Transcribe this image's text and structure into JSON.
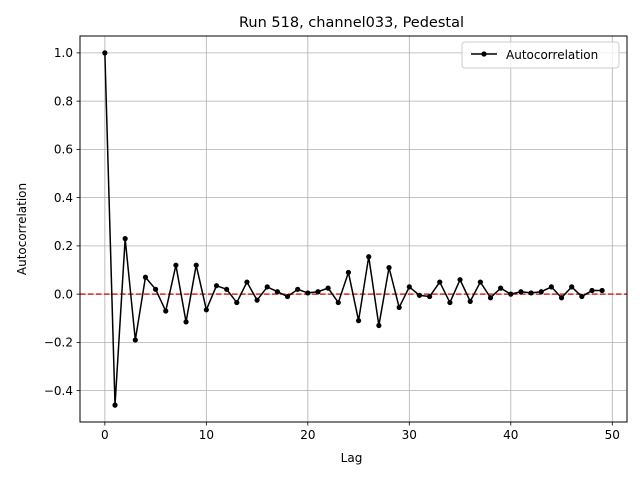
{
  "chart_data": {
    "type": "line",
    "title": "Run 518, channel033, Pedestal",
    "xlabel": "Lag",
    "ylabel": "Autocorrelation",
    "xlim": [
      -2.45,
      51.45
    ],
    "ylim": [
      -0.53,
      1.07
    ],
    "xticks": [
      0,
      10,
      20,
      30,
      40,
      50
    ],
    "xtick_labels": [
      "0",
      "10",
      "20",
      "30",
      "40",
      "50"
    ],
    "yticks": [
      -0.4,
      -0.2,
      0.0,
      0.2,
      0.4,
      0.6,
      0.8,
      1.0
    ],
    "ytick_labels": [
      "−0.4",
      "−0.2",
      "0.0",
      "0.2",
      "0.4",
      "0.6",
      "0.8",
      "1.0"
    ],
    "grid": true,
    "legend_position": "top-right",
    "reference_line": {
      "y": 0.0,
      "color": "#d62728",
      "style": "dashed"
    },
    "series": [
      {
        "name": "Autocorrelation",
        "color": "#000000",
        "marker": "circle",
        "x": [
          0,
          1,
          2,
          3,
          4,
          5,
          6,
          7,
          8,
          9,
          10,
          11,
          12,
          13,
          14,
          15,
          16,
          17,
          18,
          19,
          20,
          21,
          22,
          23,
          24,
          25,
          26,
          27,
          28,
          29,
          30,
          31,
          32,
          33,
          34,
          35,
          36,
          37,
          38,
          39,
          40,
          41,
          42,
          43,
          44,
          45,
          46,
          47,
          48,
          49
        ],
        "values": [
          1.0,
          -0.46,
          0.23,
          -0.19,
          0.07,
          0.02,
          -0.07,
          0.12,
          -0.115,
          0.12,
          -0.065,
          0.035,
          0.02,
          -0.035,
          0.05,
          -0.025,
          0.03,
          0.01,
          -0.01,
          0.02,
          0.005,
          0.01,
          0.025,
          -0.035,
          0.09,
          -0.11,
          0.155,
          -0.13,
          0.11,
          -0.055,
          0.03,
          -0.005,
          -0.01,
          0.05,
          -0.035,
          0.06,
          -0.03,
          0.05,
          -0.015,
          0.025,
          0.0,
          0.01,
          0.005,
          0.01,
          0.03,
          -0.015,
          0.03,
          -0.01,
          0.015,
          0.015
        ]
      }
    ]
  }
}
